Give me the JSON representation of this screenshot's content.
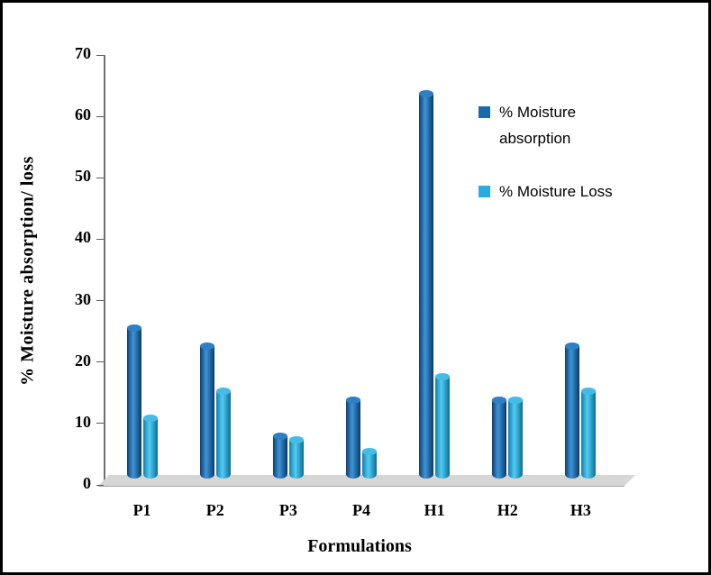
{
  "chart_data": {
    "type": "bar",
    "style": "3d-cylinder",
    "title": "",
    "xlabel": "Formulations",
    "ylabel": "% Moisture absorption/ loss",
    "ylim": [
      0,
      70
    ],
    "yticks": [
      0,
      10,
      20,
      30,
      40,
      50,
      60,
      70
    ],
    "categories": [
      "P1",
      "P2",
      "P3",
      "P4",
      "H1",
      "H2",
      "H3"
    ],
    "series": [
      {
        "name": "% Moisture absorption",
        "color": "#1769B0",
        "gradient": [
          "#0d3f74",
          "#3d95d8",
          "#0b3a66"
        ],
        "top_color": "#2f7fc4",
        "values": [
          25,
          22,
          7,
          13,
          64,
          13,
          22
        ]
      },
      {
        "name": "% Moisture Loss",
        "color": "#29ABE2",
        "gradient": [
          "#0d7fae",
          "#54ccf2",
          "#0a6e96"
        ],
        "top_color": "#45bce8",
        "values": [
          10,
          14.5,
          6.5,
          4.5,
          17,
          13,
          14.5
        ]
      }
    ],
    "legend_position": "right",
    "grid": false,
    "frame_color": "#000000",
    "floor_color": "#d6d6d6"
  }
}
